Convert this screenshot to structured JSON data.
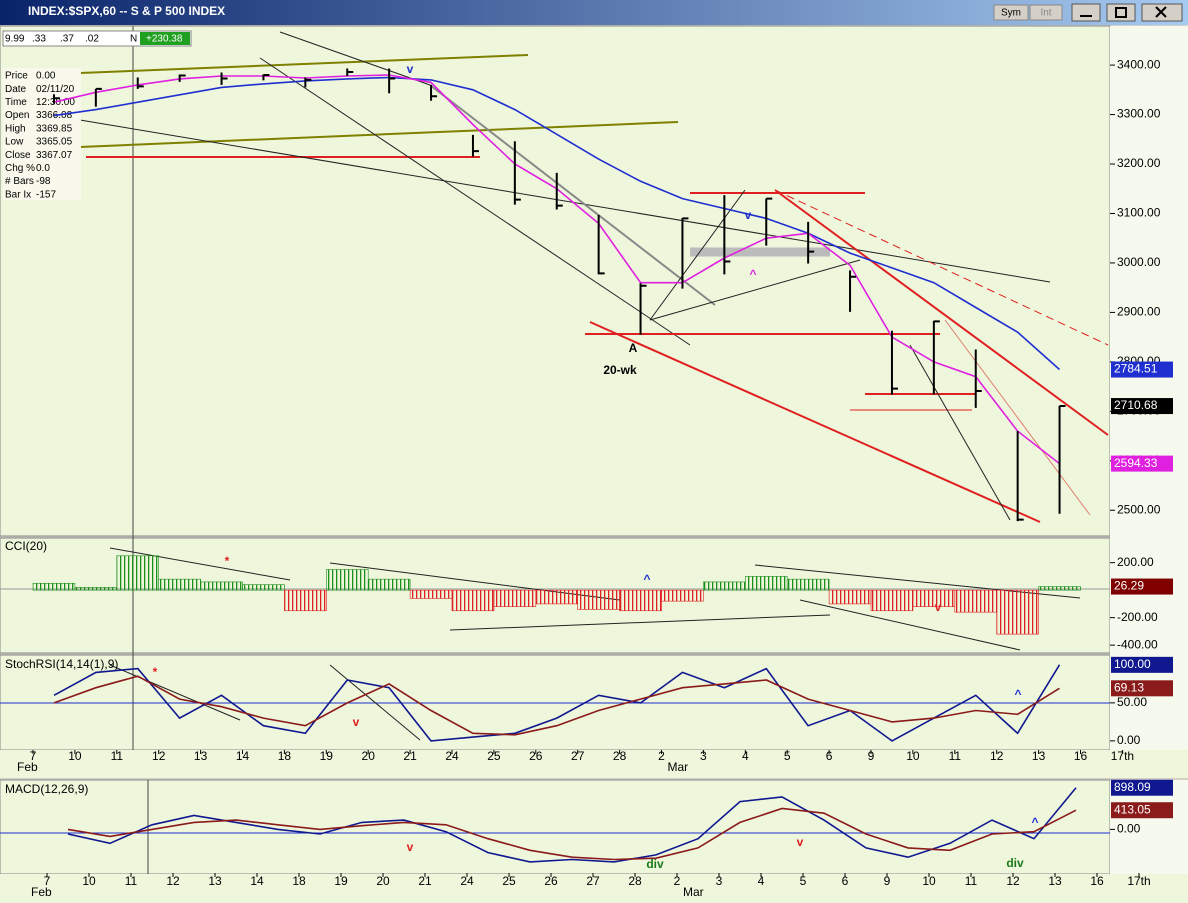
{
  "window": {
    "title": "INDEX:$SPX,60 -- S & P 500 INDEX",
    "buttons": [
      "Sym",
      "Int"
    ],
    "quote": [
      "9.99",
      ".33",
      ".37",
      ".02",
      "N",
      "+230.38"
    ],
    "info": [
      [
        "Price",
        "0.00"
      ],
      [
        "Date",
        "02/11/20"
      ],
      [
        "Time",
        "12:30:00"
      ],
      [
        "Open",
        "3366.08"
      ],
      [
        "High",
        "3369.85"
      ],
      [
        "Low",
        "3365.05"
      ],
      [
        "Close",
        "3367.07"
      ],
      [
        "Chg %",
        "0.0"
      ],
      [
        "# Bars",
        "-98"
      ],
      [
        "Bar Ix",
        "-157"
      ]
    ]
  },
  "chart_data": [
    {
      "type": "ohlc",
      "ylim": [
        2450,
        3475
      ],
      "yticks": [
        {
          "value": 2500,
          "label": "2500.00"
        },
        {
          "value": 2600,
          "label": "2600.00"
        },
        {
          "value": 2700,
          "label": "2700.00"
        },
        {
          "value": 2800,
          "label": "2800.00"
        },
        {
          "value": 2900,
          "label": "2900.00"
        },
        {
          "value": 3000,
          "label": "3000.00"
        },
        {
          "value": 3100,
          "label": "3100.00"
        },
        {
          "value": 3200,
          "label": "3200.00"
        },
        {
          "value": 3300,
          "label": "3300.00"
        },
        {
          "value": 3400,
          "label": "3400.00"
        }
      ],
      "bars": {
        "color": "#000000",
        "high": [
          3341,
          3352,
          3375,
          3381,
          3385,
          3381,
          3375,
          3393,
          3393,
          3360,
          3259,
          3246,
          3182,
          3097,
          2959,
          3091,
          3137,
          3130,
          3083,
          2985,
          2863,
          2883,
          2825,
          2660,
          2711,
          null,
          null
        ],
        "low": [
          3322,
          3316,
          3352,
          3366,
          3360,
          3369,
          3355,
          3378,
          3343,
          3328,
          3215,
          3118,
          3108,
          2977,
          2855,
          2948,
          2977,
          3035,
          2999,
          2901,
          2734,
          2734,
          2707,
          2478,
          2493,
          null,
          null
        ],
        "close": [
          3333,
          3352,
          3357,
          3379,
          3373,
          3380,
          3370,
          3386,
          3373,
          3337,
          3226,
          3128,
          3116,
          2979,
          2954,
          3090,
          3003,
          3130,
          3023,
          2972,
          2746,
          2882,
          2741,
          2481,
          2710.68,
          null,
          null
        ]
      },
      "lines": [
        {
          "color": "#1f2fd0",
          "values": [
            3298,
            3310,
            3325,
            3340,
            3355,
            3362,
            3368,
            3372,
            3375,
            3370,
            3350,
            3310,
            3260,
            3210,
            3165,
            3130,
            3110,
            3090,
            3060,
            3020,
            2990,
            2960,
            2910,
            2860,
            2784.51,
            null,
            null
          ]
        },
        {
          "color": "#e020e0",
          "values": [
            3325,
            3345,
            3360,
            3372,
            3378,
            3378,
            3374,
            3378,
            3380,
            3365,
            3280,
            3200,
            3150,
            3080,
            2960,
            2960,
            3010,
            3050,
            3060,
            2995,
            2850,
            2800,
            2770,
            2660,
            2594.33,
            null,
            null
          ]
        }
      ],
      "annotations": [
        {
          "text": "v",
          "color": "#1f2fd0"
        },
        {
          "text": "v",
          "color": "#1f2fd0"
        },
        {
          "text": "^",
          "color": "#e020e0"
        },
        {
          "text": "A",
          "color": "#000000"
        },
        {
          "text": "20-wk",
          "color": "#000000"
        }
      ]
    },
    {
      "type": "bar",
      "title": "CCI(20)",
      "ylim": [
        -450,
        365
      ],
      "yticks": [
        {
          "value": 200,
          "label": "200.00"
        },
        {
          "value": -200,
          "label": "-200.00"
        },
        {
          "value": -400,
          "label": "-400.00"
        }
      ],
      "pos_color": "#1a8f1a",
      "neg_color": "#e02020",
      "label_color": "#800000",
      "values": [
        50,
        20,
        250,
        80,
        60,
        40,
        -150,
        150,
        80,
        -60,
        -150,
        -120,
        -100,
        -140,
        -150,
        -80,
        60,
        100,
        80,
        -100,
        -150,
        -120,
        -160,
        -320,
        26.29,
        null,
        null
      ],
      "annotations": [
        {
          "text": "*",
          "color": "#e02020"
        },
        {
          "text": "^",
          "color": "#1f2fd0"
        },
        {
          "text": "v",
          "color": "#e02020"
        }
      ]
    },
    {
      "type": "line",
      "title": "StochRSI(14,14(1),9)",
      "ylim": [
        -12,
        109
      ],
      "yticks": [
        {
          "value": 50,
          "label": "50.00"
        },
        {
          "value": 0,
          "label": "0.00"
        }
      ],
      "categories": [
        "7",
        "10",
        "11",
        "12",
        "13",
        "14",
        "18",
        "19",
        "20",
        "21",
        "24",
        "25",
        "26",
        "27",
        "28",
        "2",
        "3",
        "4",
        "5",
        "6",
        "9",
        "10",
        "11",
        "12",
        "13",
        "16",
        "17th"
      ],
      "months": [
        "Feb",
        "Mar"
      ],
      "series": [
        {
          "color": "#101890",
          "values": [
            60,
            90,
            95,
            30,
            60,
            20,
            10,
            80,
            70,
            0,
            5,
            10,
            30,
            60,
            50,
            90,
            70,
            95,
            20,
            40,
            0,
            30,
            60,
            10,
            100,
            null,
            null
          ],
          "value_labels": [
            null,
            null,
            null,
            null,
            null,
            null,
            null,
            null,
            null,
            null,
            null,
            null,
            null,
            null,
            null,
            null,
            null,
            null,
            null,
            null,
            null,
            null,
            null,
            null,
            "100.00",
            null,
            null
          ]
        },
        {
          "color": "#8b1a1a",
          "values": [
            50,
            70,
            85,
            55,
            45,
            30,
            20,
            50,
            75,
            40,
            10,
            8,
            20,
            40,
            55,
            70,
            75,
            80,
            55,
            40,
            25,
            30,
            40,
            35,
            69.13,
            null,
            null
          ]
        }
      ],
      "annotations": [
        {
          "text": "*",
          "color": "#e02020"
        },
        {
          "text": "v",
          "color": "#e02020"
        },
        {
          "text": "^",
          "color": "#1f2fd0"
        }
      ]
    },
    {
      "type": "line",
      "title": "MACD(12,26,9)",
      "ylim": [
        -940,
        1000
      ],
      "yticks": [
        {
          "value": 0,
          "label": "0.00"
        }
      ],
      "categories": [
        "7",
        "10",
        "11",
        "12",
        "13",
        "14",
        "18",
        "19",
        "20",
        "21",
        "24",
        "25",
        "26",
        "27",
        "28",
        "2",
        "3",
        "4",
        "5",
        "6",
        "9",
        "10",
        "11",
        "12",
        "13",
        "16",
        "17th"
      ],
      "months": [
        "Feb",
        "Mar"
      ],
      "series": [
        {
          "color": "#101890",
          "values": [
            -100,
            -300,
            100,
            300,
            150,
            0,
            -100,
            150,
            200,
            -50,
            -500,
            -700,
            -650,
            -700,
            -550,
            -200,
            600,
            700,
            200,
            -400,
            -600,
            -300,
            200,
            -200,
            898.09,
            null,
            null
          ]
        },
        {
          "color": "#8b1a1a",
          "values": [
            0,
            -150,
            0,
            150,
            200,
            100,
            0,
            80,
            150,
            100,
            -200,
            -450,
            -600,
            -650,
            -620,
            -400,
            150,
            450,
            350,
            -100,
            -400,
            -450,
            -100,
            -50,
            413.05,
            null,
            null
          ]
        }
      ],
      "annotations": [
        {
          "text": "v",
          "color": "#e02020"
        },
        {
          "text": "div",
          "color": "#1a7a1a"
        },
        {
          "text": "v",
          "color": "#e02020"
        },
        {
          "text": "div",
          "color": "#1a7a1a"
        },
        {
          "text": "^",
          "color": "#1f2fd0"
        }
      ]
    }
  ]
}
